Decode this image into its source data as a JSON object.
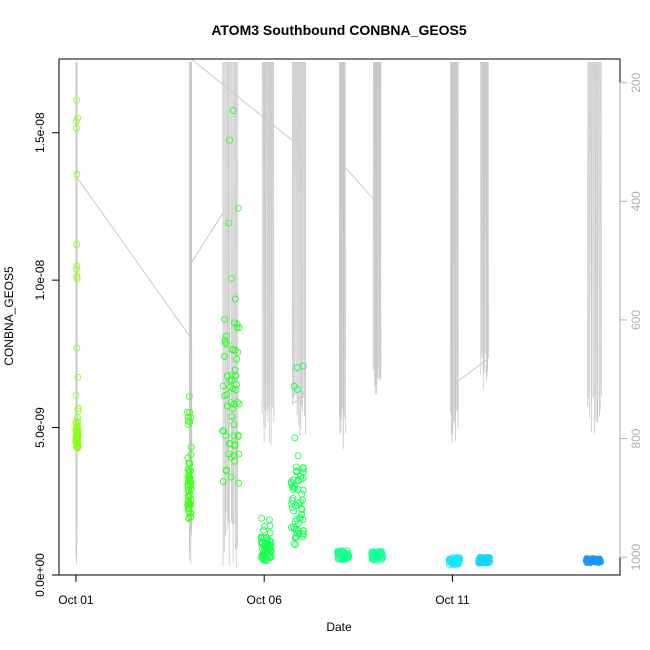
{
  "chart_data": {
    "type": "scatter",
    "title": "ATOM3 Southbound CONBNA_GEOS5",
    "xlabel": "Date",
    "ylabel": "CONBNA_GEOS5",
    "x_unit": "days since Oct 01",
    "xlim": [
      -0.45,
      14.45
    ],
    "ylim": [
      0.0,
      1.75e-08
    ],
    "x_ticks": [
      {
        "value": 0,
        "label": "Oct 01"
      },
      {
        "value": 5,
        "label": "Oct 06"
      },
      {
        "value": 10,
        "label": "Oct 11"
      }
    ],
    "y_ticks": [
      {
        "value": 0.0,
        "label": "0.0e+00"
      },
      {
        "value": 5e-09,
        "label": "5.0e-09"
      },
      {
        "value": 1e-08,
        "label": "1.0e-08"
      },
      {
        "value": 1.5e-08,
        "label": "1.5e-08"
      }
    ],
    "right_axis": {
      "description": "pressure (hPa), inverted",
      "lim": [
        1030,
        160
      ],
      "ticks": [
        {
          "value": 200,
          "label": "200"
        },
        {
          "value": 400,
          "label": "400"
        },
        {
          "value": 600,
          "label": "600"
        },
        {
          "value": 800,
          "label": "800"
        },
        {
          "value": 1000,
          "label": "1000"
        }
      ]
    },
    "colors": {
      "pressure_line": "#c8c8c8",
      "axis": "#000000",
      "right_axis": "#b0b0b0"
    },
    "clusters": [
      {
        "x": [
          0.0,
          0.06
        ],
        "y_high": [
          4.3e-09,
          1.62e-08
        ],
        "y_dense": [
          4.3e-09,
          5.2e-09
        ],
        "color": "#8cff1a"
      },
      {
        "x": [
          2.96,
          3.06
        ],
        "y_high": [
          1.9e-09,
          6.1e-09
        ],
        "y_dense": [
          1.9e-09,
          3.8e-09
        ],
        "color": "#40ff1a"
      },
      {
        "x": [
          3.88,
          4.35
        ],
        "y_high": [
          3e-09,
          1.66e-08
        ],
        "y_dense": [
          3e-09,
          9e-09
        ],
        "color": "#2cff2a"
      },
      {
        "x": [
          4.92,
          5.2
        ],
        "y_high": [
          4.8e-10,
          1.95e-09
        ],
        "y_dense": [
          5e-10,
          1.3e-09
        ],
        "color": "#1aff50"
      },
      {
        "x": [
          5.72,
          6.05
        ],
        "y_high": [
          1e-09,
          7.3e-09
        ],
        "y_dense": [
          1e-09,
          3.6e-09
        ],
        "color": "#1aff55"
      },
      {
        "x": [
          6.95,
          7.25
        ],
        "y_high": [
          5.2e-10,
          8.2e-10
        ],
        "y_dense": [
          5.2e-10,
          8.2e-10
        ],
        "color": "#1aff90"
      },
      {
        "x": [
          7.85,
          8.15
        ],
        "y_high": [
          5e-10,
          8e-10
        ],
        "y_dense": [
          5e-10,
          8e-10
        ],
        "color": "#1aff9a"
      },
      {
        "x": [
          9.9,
          10.2
        ],
        "y_high": [
          3.6e-10,
          6e-10
        ],
        "y_dense": [
          3.6e-10,
          6e-10
        ],
        "color": "#1ae6ff"
      },
      {
        "x": [
          10.7,
          11.0
        ],
        "y_high": [
          4e-10,
          6e-10
        ],
        "y_dense": [
          4e-10,
          6e-10
        ],
        "color": "#1ad2ff"
      },
      {
        "x": [
          13.55,
          13.95
        ],
        "y_high": [
          4.2e-10,
          5.6e-10
        ],
        "y_dense": [
          4.2e-10,
          5.6e-10
        ],
        "color": "#1a96ff"
      }
    ],
    "pressure_profiles": [
      {
        "x": [
          0.0,
          0.03
        ],
        "p": [
          165,
          1020
        ]
      },
      {
        "x": [
          3.02,
          3.07
        ],
        "p": [
          165,
          1020
        ]
      },
      {
        "x": [
          3.9,
          4.3
        ],
        "p": [
          165,
          1020
        ]
      },
      {
        "x": [
          4.95,
          5.25
        ],
        "p": [
          165,
          820
        ]
      },
      {
        "x": [
          5.75,
          6.1
        ],
        "p": [
          165,
          800
        ]
      },
      {
        "x": [
          7.0,
          7.15
        ],
        "p": [
          165,
          820
        ]
      },
      {
        "x": [
          7.9,
          8.1
        ],
        "p": [
          165,
          730
        ]
      },
      {
        "x": [
          9.95,
          10.15
        ],
        "p": [
          165,
          830
        ]
      },
      {
        "x": [
          10.75,
          10.95
        ],
        "p": [
          165,
          720
        ]
      },
      {
        "x": [
          13.6,
          13.95
        ],
        "p": [
          165,
          800
        ]
      }
    ],
    "pressure_transit": [
      {
        "x": 0.03,
        "p": 360
      },
      {
        "x": 3.05,
        "p": 630
      },
      {
        "x": 3.05,
        "p": 505
      },
      {
        "x": 3.9,
        "p": 420
      },
      {
        "x": 3.06,
        "p": 160
      },
      {
        "x": 5.8,
        "p": 300
      },
      {
        "x": 5.8,
        "p": 740
      },
      {
        "x": 6.1,
        "p": 720
      },
      {
        "x": 7.12,
        "p": 340
      },
      {
        "x": 7.95,
        "p": 400
      },
      {
        "x": 10.0,
        "p": 710
      },
      {
        "x": 10.95,
        "p": 665
      }
    ]
  }
}
